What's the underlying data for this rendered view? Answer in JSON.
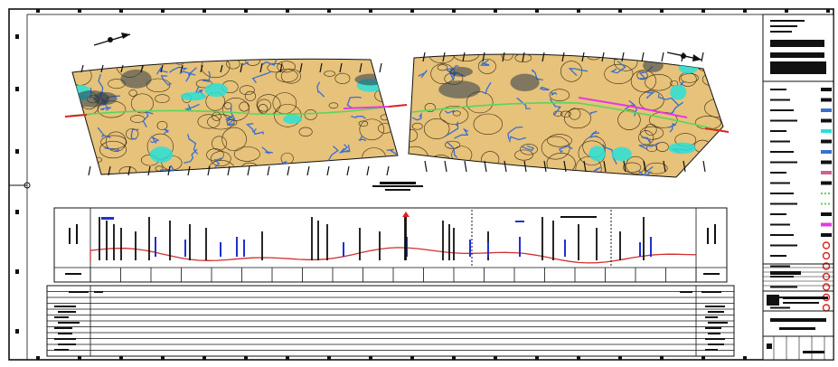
{
  "drawing": {
    "colors": {
      "paper": "#ffffff",
      "line": "#111111",
      "terrain": "#e6c27a",
      "water": "#3a6fd1",
      "cyan": "#29e0d8",
      "magenta": "#e23be0",
      "green": "#58d65a",
      "alignment": "#e02020",
      "ground": "#d03030",
      "structure": "#2030d0",
      "dark": "#2c3a4a"
    },
    "title_block_row_labels": [],
    "legend_symbols": [
      {
        "icon": "water-symbol",
        "color": "#3a6fd1"
      },
      {
        "icon": "cyan-symbol",
        "color": "#29e0d8"
      },
      {
        "icon": "dashed-green-line-symbol",
        "color": "#58d65a"
      },
      {
        "icon": "magenta-line-symbol",
        "color": "#e23be0"
      },
      {
        "icon": "red-node-symbol",
        "color": "#e02020"
      }
    ]
  }
}
